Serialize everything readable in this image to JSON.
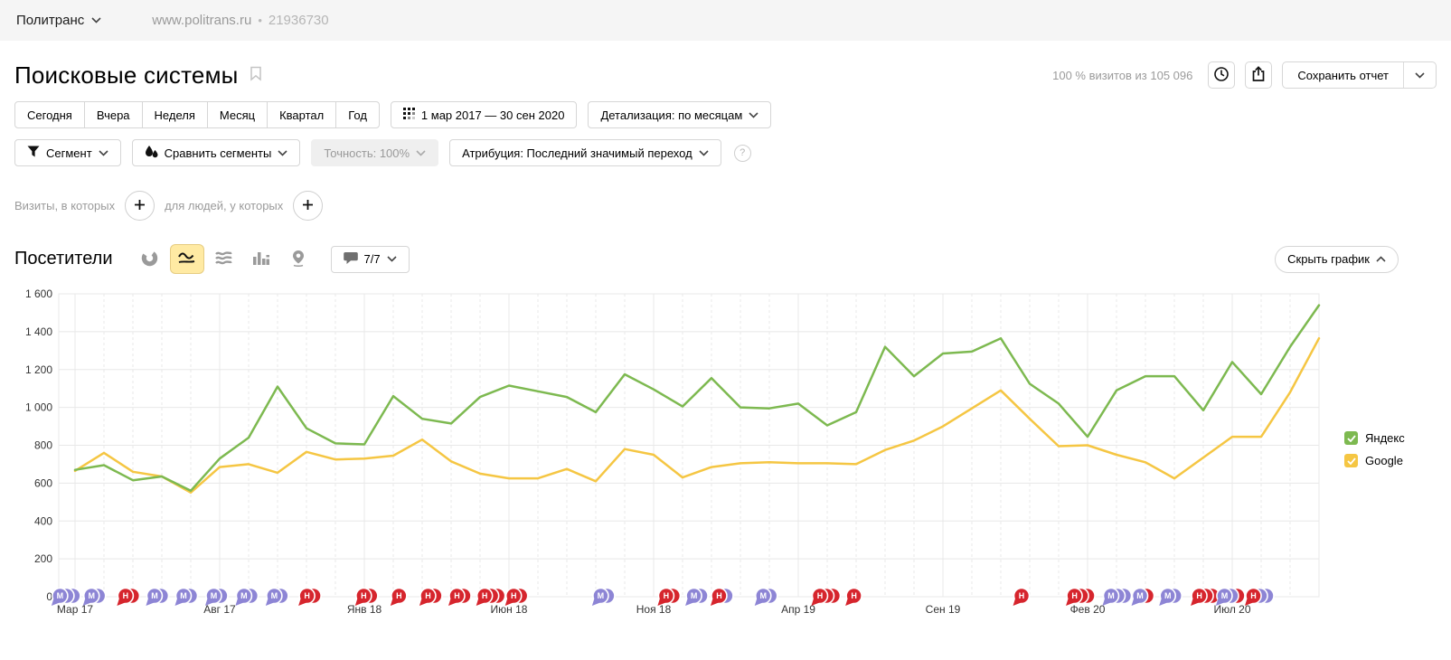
{
  "topbar": {
    "counter_name": "Политранс",
    "site": "www.politrans.ru",
    "separator": "•",
    "counter_id": "21936730"
  },
  "header": {
    "title": "Поисковые системы",
    "visits_summary": "100 % визитов из 105 096",
    "save_report_label": "Сохранить отчет"
  },
  "period": {
    "presets": [
      "Сегодня",
      "Вчера",
      "Неделя",
      "Месяц",
      "Квартал",
      "Год"
    ],
    "date_range": "1 мар 2017 — 30 сен 2020",
    "detail_label": "Детализация: по месяцам"
  },
  "filters": {
    "segment_label": "Сегмент",
    "compare_label": "Сравнить сегменты",
    "accuracy_label": "Точность: 100%",
    "attribution_label": "Атрибуция: Последний значимый переход",
    "help_glyph": "?"
  },
  "builder": {
    "visits_label": "Визиты, в которых",
    "people_label": "для людей, у которых"
  },
  "chart_header": {
    "metric": "Посетители",
    "goals_count": "7/7",
    "hide_chart_label": "Скрыть график"
  },
  "chart_data": {
    "type": "line",
    "title": "Посетители",
    "months_start": "Мар 2017",
    "months_end": "Окт 2020",
    "ylim": [
      0,
      1600
    ],
    "ytick_step": 200,
    "ytick_labels": [
      "0",
      "200",
      "400",
      "600",
      "800",
      "1 000",
      "1 200",
      "1 400",
      "1 600"
    ],
    "x_tick_labels": [
      "Мар 17",
      "Авг 17",
      "Янв 18",
      "Июн 18",
      "Ноя 18",
      "Апр 19",
      "Сен 19",
      "Фев 20",
      "Июл 20"
    ],
    "x_tick_positions": [
      0,
      5,
      10,
      15,
      20,
      25,
      30,
      35,
      40
    ],
    "grid_color": "#e8e8e8",
    "legend_position": "right",
    "series": [
      {
        "name": "Яндекс",
        "color": "#7db950",
        "values": [
          670,
          695,
          615,
          635,
          560,
          730,
          840,
          1110,
          890,
          810,
          805,
          1060,
          940,
          915,
          1055,
          1115,
          1085,
          1055,
          975,
          1175,
          1095,
          1005,
          1155,
          1000,
          995,
          1020,
          905,
          975,
          1320,
          1165,
          1285,
          1295,
          1365,
          1125,
          1020,
          845,
          1090,
          1165,
          1165,
          985,
          1240,
          1070,
          1320,
          1540
        ]
      },
      {
        "name": "Google",
        "color": "#f5c643",
        "values": [
          665,
          760,
          660,
          635,
          550,
          685,
          700,
          655,
          765,
          725,
          730,
          745,
          830,
          715,
          650,
          625,
          625,
          675,
          610,
          780,
          750,
          630,
          685,
          705,
          710,
          705,
          705,
          700,
          775,
          825,
          900,
          995,
          1090,
          940,
          795,
          800,
          750,
          710,
          625,
          735,
          845,
          845,
          1080,
          1365
        ]
      }
    ],
    "marker_colors": {
      "М": "#8d85d5",
      "Н": "#d6252d"
    },
    "annotations": [
      {
        "f": 0.001,
        "letters": [
          "М",
          "М",
          "М"
        ]
      },
      {
        "f": 0.026,
        "letters": [
          "М",
          "М"
        ]
      },
      {
        "f": 0.053,
        "letters": [
          "Н",
          "Н"
        ]
      },
      {
        "f": 0.076,
        "letters": [
          "М",
          "М"
        ]
      },
      {
        "f": 0.099,
        "letters": [
          "М",
          "М"
        ]
      },
      {
        "f": 0.123,
        "letters": [
          "М",
          "М"
        ]
      },
      {
        "f": 0.147,
        "letters": [
          "М",
          "М"
        ]
      },
      {
        "f": 0.171,
        "letters": [
          "М",
          "М"
        ]
      },
      {
        "f": 0.197,
        "letters": [
          "Н",
          "Н"
        ]
      },
      {
        "f": 0.242,
        "letters": [
          "Н",
          "Н"
        ]
      },
      {
        "f": 0.27,
        "letters": [
          "Н"
        ]
      },
      {
        "f": 0.293,
        "letters": [
          "Н",
          "Н"
        ]
      },
      {
        "f": 0.316,
        "letters": [
          "Н",
          "Н"
        ]
      },
      {
        "f": 0.338,
        "letters": [
          "Н",
          "Н",
          "Н"
        ]
      },
      {
        "f": 0.361,
        "letters": [
          "Н",
          "Н"
        ]
      },
      {
        "f": 0.43,
        "letters": [
          "М",
          "М"
        ]
      },
      {
        "f": 0.482,
        "letters": [
          "Н",
          "Н"
        ]
      },
      {
        "f": 0.504,
        "letters": [
          "М",
          "М"
        ]
      },
      {
        "f": 0.524,
        "letters": [
          "Н",
          "М"
        ]
      },
      {
        "f": 0.559,
        "letters": [
          "М",
          "М"
        ]
      },
      {
        "f": 0.604,
        "letters": [
          "Н",
          "Н",
          "Н"
        ]
      },
      {
        "f": 0.631,
        "letters": [
          "Н"
        ]
      },
      {
        "f": 0.764,
        "letters": [
          "Н"
        ]
      },
      {
        "f": 0.806,
        "letters": [
          "Н",
          "Н",
          "Н"
        ]
      },
      {
        "f": 0.835,
        "letters": [
          "М",
          "М",
          "М"
        ]
      },
      {
        "f": 0.858,
        "letters": [
          "М",
          "Н"
        ]
      },
      {
        "f": 0.88,
        "letters": [
          "М",
          "М"
        ]
      },
      {
        "f": 0.905,
        "letters": [
          "Н",
          "Н",
          "Н"
        ]
      },
      {
        "f": 0.925,
        "letters": [
          "М",
          "М",
          "Н"
        ]
      },
      {
        "f": 0.948,
        "letters": [
          "Н",
          "М",
          "М"
        ]
      }
    ]
  }
}
